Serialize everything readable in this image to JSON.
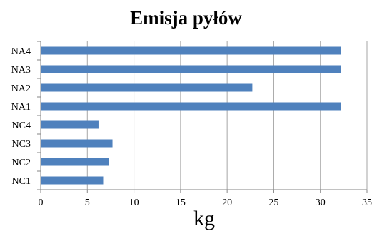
{
  "chart_data": {
    "type": "bar",
    "orientation": "horizontal",
    "title": "Emisja pyłów",
    "xlabel": "kg",
    "ylabel": "",
    "categories": [
      "NC1",
      "NC2",
      "NC3",
      "NC4",
      "NA1",
      "NA2",
      "NA3",
      "NA4"
    ],
    "values": [
      6.7,
      7.3,
      7.7,
      6.2,
      32.2,
      22.7,
      32.2,
      32.2
    ],
    "xlim": [
      0,
      35
    ],
    "xticks": [
      "0",
      "5",
      "10",
      "15",
      "20",
      "25",
      "30",
      "35"
    ],
    "grid": "vertical",
    "legend": "none",
    "bar_color": "#4F81BD",
    "grid_color": "#A6A6A6",
    "axis_color": "#868686"
  }
}
